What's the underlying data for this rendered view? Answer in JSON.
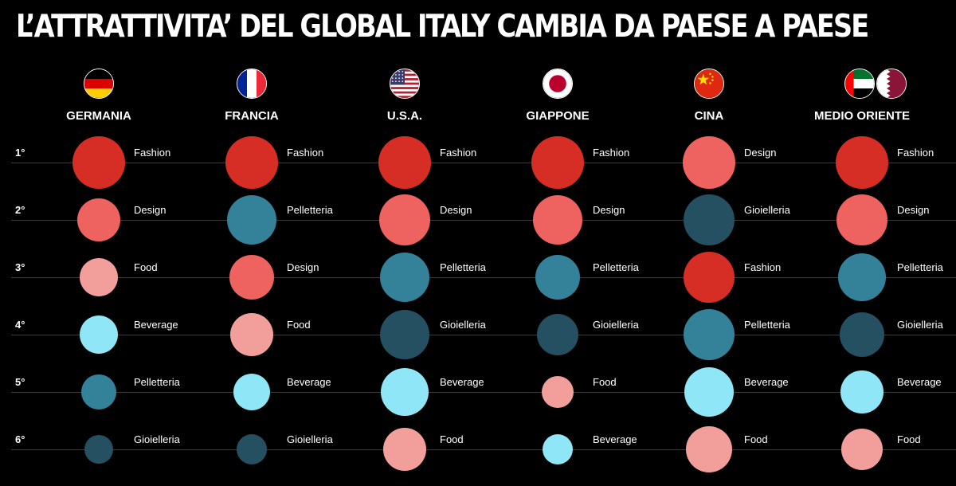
{
  "title": "L’ATTRATTIVITA’ DEL GLOBAL ITALY CAMBIA DA PAESE A PAESE",
  "chart_data": {
    "type": "ranked-bubble-matrix",
    "title": "L’ATTRATTIVITA’ DEL GLOBAL ITALY CAMBIA DA PAESE A PAESE",
    "ranks": [
      "1°",
      "2°",
      "3°",
      "4°",
      "5°",
      "6°"
    ],
    "category_colors": {
      "Fashion": "#d62e24",
      "Design": "#ee6360",
      "Food": "#f29f9c",
      "Beverage": "#8ee6f6",
      "Pelletteria": "#34829a",
      "Gioielleria": "#255061"
    },
    "countries": [
      {
        "name": "GERMANIA",
        "flag": "germany-flag-icon",
        "flag2": null,
        "items": [
          {
            "rank": "1°",
            "label": "Fashion",
            "size": 33
          },
          {
            "rank": "2°",
            "label": "Design",
            "size": 27
          },
          {
            "rank": "3°",
            "label": "Food",
            "size": 24
          },
          {
            "rank": "4°",
            "label": "Beverage",
            "size": 24
          },
          {
            "rank": "5°",
            "label": "Pelletteria",
            "size": 22
          },
          {
            "rank": "6°",
            "label": "Gioielleria",
            "size": 18
          }
        ]
      },
      {
        "name": "FRANCIA",
        "flag": "france-flag-icon",
        "flag2": null,
        "items": [
          {
            "rank": "1°",
            "label": "Fashion",
            "size": 33
          },
          {
            "rank": "2°",
            "label": "Pelletteria",
            "size": 31
          },
          {
            "rank": "3°",
            "label": "Design",
            "size": 28
          },
          {
            "rank": "4°",
            "label": "Food",
            "size": 27
          },
          {
            "rank": "5°",
            "label": "Beverage",
            "size": 23
          },
          {
            "rank": "6°",
            "label": "Gioielleria",
            "size": 19
          }
        ]
      },
      {
        "name": "U.S.A.",
        "flag": "usa-flag-icon",
        "flag2": null,
        "items": [
          {
            "rank": "1°",
            "label": "Fashion",
            "size": 33
          },
          {
            "rank": "2°",
            "label": "Design",
            "size": 32
          },
          {
            "rank": "3°",
            "label": "Pelletteria",
            "size": 31
          },
          {
            "rank": "4°",
            "label": "Gioielleria",
            "size": 31
          },
          {
            "rank": "5°",
            "label": "Beverage",
            "size": 30
          },
          {
            "rank": "6°",
            "label": "Food",
            "size": 27
          }
        ]
      },
      {
        "name": "GIAPPONE",
        "flag": "japan-flag-icon",
        "flag2": null,
        "items": [
          {
            "rank": "1°",
            "label": "Fashion",
            "size": 33
          },
          {
            "rank": "2°",
            "label": "Design",
            "size": 31
          },
          {
            "rank": "3°",
            "label": "Pelletteria",
            "size": 28
          },
          {
            "rank": "4°",
            "label": "Gioielleria",
            "size": 26
          },
          {
            "rank": "5°",
            "label": "Food",
            "size": 20
          },
          {
            "rank": "6°",
            "label": "Beverage",
            "size": 19
          }
        ]
      },
      {
        "name": "CINA",
        "flag": "china-flag-icon",
        "flag2": null,
        "items": [
          {
            "rank": "1°",
            "label": "Design",
            "size": 33
          },
          {
            "rank": "2°",
            "label": "Gioielleria",
            "size": 32
          },
          {
            "rank": "3°",
            "label": "Fashion",
            "size": 32
          },
          {
            "rank": "4°",
            "label": "Pelletteria",
            "size": 32
          },
          {
            "rank": "5°",
            "label": "Beverage",
            "size": 31
          },
          {
            "rank": "6°",
            "label": "Food",
            "size": 29
          }
        ]
      },
      {
        "name": "MEDIO ORIENTE",
        "flag": "uae-flag-icon",
        "flag2": "qatar-flag-icon",
        "items": [
          {
            "rank": "1°",
            "label": "Fashion",
            "size": 33
          },
          {
            "rank": "2°",
            "label": "Design",
            "size": 32
          },
          {
            "rank": "3°",
            "label": "Pelletteria",
            "size": 30
          },
          {
            "rank": "4°",
            "label": "Gioielleria",
            "size": 28
          },
          {
            "rank": "5°",
            "label": "Beverage",
            "size": 27
          },
          {
            "rank": "6°",
            "label": "Food",
            "size": 26
          }
        ]
      }
    ]
  }
}
